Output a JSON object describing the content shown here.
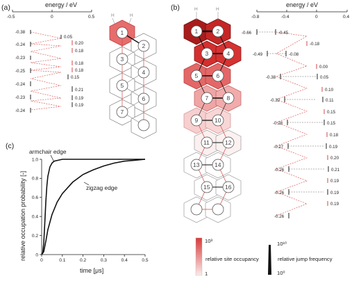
{
  "panels": {
    "a": "(a)",
    "b": "(b)",
    "c": "(c)"
  },
  "energy_axis": {
    "title": "energy / eV",
    "a_ticks": [
      "-0.5",
      "0",
      "0.5"
    ],
    "b_ticks": [
      "-0.8",
      "-0.4",
      "0",
      "0.4"
    ]
  },
  "hydrogen_label": "H",
  "a_levels": {
    "left": [
      "-0.38",
      "-0.24",
      "-0.23",
      "-0.25",
      "-0.24",
      "-0.23",
      "-0.24"
    ],
    "right": [
      "0.05",
      "0.20",
      "0.18",
      "0.18",
      "0.18",
      "0.15",
      "0.21",
      "0.19",
      "0.19"
    ]
  },
  "b_levels": {
    "left": [
      "-0.66",
      "-0.49",
      "-0.38",
      "-0.32",
      "-0.28",
      "-0.27",
      "-0.26",
      "-0.26",
      "-0.26"
    ],
    "right": [
      "-0.45",
      "-0.18",
      "-0.08",
      "0.00",
      "0.05",
      "0.10",
      "0.11",
      "0.15",
      "0.15",
      "0.18",
      "0.19",
      "0.20",
      "0.21",
      "0.19",
      "0.19",
      "0.19"
    ]
  },
  "a_sites": [
    "1",
    "2",
    "3",
    "4",
    "5",
    "6",
    "7"
  ],
  "b_sites": [
    "1",
    "2",
    "3",
    "4",
    "5",
    "6",
    "7",
    "8",
    "9",
    "10",
    "11",
    "12",
    "13",
    "14",
    "15",
    "16"
  ],
  "legend": {
    "occupancy_max": "10³",
    "occupancy_min": "1",
    "occupancy_label": "relative site occupancy",
    "jump_max": "10¹⁰",
    "jump_min": "10⁰",
    "jump_label": "relative jump frequency"
  },
  "chart_data": {
    "type": "line",
    "xlabel": "time [μs]",
    "ylabel": "relative occupation probability [-]",
    "xlim": [
      0,
      0.5
    ],
    "ylim": [
      0,
      1.0
    ],
    "xticks": [
      "0",
      "0.1",
      "0.2",
      "0.3",
      "0.4",
      "0.5"
    ],
    "yticks": [
      "0",
      "0.2",
      "0.4",
      "0.6",
      "0.8",
      "1.0"
    ],
    "series": [
      {
        "name": "armchair edge",
        "x": [
          0,
          0.005,
          0.01,
          0.015,
          0.02,
          0.025,
          0.03,
          0.04,
          0.05,
          0.06,
          0.08,
          0.1,
          0.15,
          0.2,
          0.3,
          0.4,
          0.5
        ],
        "y": [
          0,
          0.02,
          0.12,
          0.33,
          0.55,
          0.72,
          0.82,
          0.92,
          0.96,
          0.98,
          0.99,
          1.0,
          1.0,
          1.0,
          1.0,
          1.0,
          1.0
        ]
      },
      {
        "name": "zigzag edge",
        "x": [
          0,
          0.01,
          0.02,
          0.03,
          0.05,
          0.075,
          0.1,
          0.15,
          0.2,
          0.25,
          0.3,
          0.35,
          0.4,
          0.45,
          0.5
        ],
        "y": [
          0,
          0.03,
          0.14,
          0.26,
          0.42,
          0.55,
          0.64,
          0.76,
          0.84,
          0.89,
          0.93,
          0.96,
          0.98,
          0.99,
          1.0
        ]
      }
    ]
  }
}
